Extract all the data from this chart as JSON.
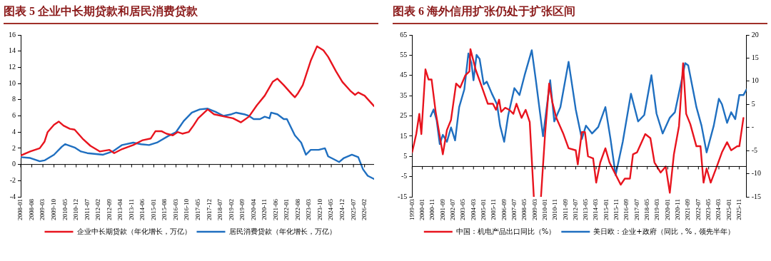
{
  "chart_data": [
    {
      "type": "line",
      "title": "图表 5 企业中长期贷款和居民消费贷款",
      "legend": "bottom",
      "xlim": [
        "2008-01",
        "2026-08"
      ],
      "xticks": [
        "2008-01",
        "2008-08",
        "2009-03",
        "2009-10",
        "2010-05",
        "2010-12",
        "2011-07",
        "2012-02",
        "2012-09",
        "2013-04",
        "2013-11",
        "2014-06",
        "2015-01",
        "2015-08",
        "2016-03",
        "2016-10",
        "2017-05",
        "2017-12",
        "2018-07",
        "2019-02",
        "2019-09",
        "2020-04",
        "2020-11",
        "2021-06",
        "2022-01",
        "2022-08",
        "2023-03",
        "2023-10",
        "2024-05",
        "2024-12",
        "2025-07",
        "2026-02"
      ],
      "ylim": [
        -4,
        16
      ],
      "yticks": [
        -4,
        -2,
        0,
        2,
        4,
        6,
        8,
        10,
        12,
        14,
        16
      ],
      "series": [
        {
          "name": "企业中长期贷款（年化增长，万亿）",
          "color": "#e8141e",
          "x": [
            "2008-01",
            "2008-07",
            "2009-01",
            "2009-04",
            "2009-06",
            "2009-10",
            "2010-01",
            "2010-04",
            "2010-08",
            "2010-11",
            "2011-04",
            "2011-09",
            "2012-03",
            "2012-09",
            "2012-12",
            "2013-05",
            "2013-12",
            "2014-06",
            "2014-11",
            "2015-02",
            "2015-06",
            "2015-09",
            "2016-01",
            "2016-04",
            "2016-07",
            "2016-11",
            "2017-02",
            "2017-05",
            "2017-11",
            "2018-03",
            "2018-10",
            "2019-03",
            "2019-08",
            "2020-01",
            "2020-06",
            "2020-11",
            "2021-04",
            "2021-07",
            "2021-11",
            "2022-04",
            "2022-06",
            "2022-08",
            "2022-11",
            "2023-04",
            "2023-08",
            "2023-12",
            "2024-03",
            "2024-08",
            "2024-12",
            "2025-05",
            "2025-08",
            "2025-10",
            "2026-02",
            "2026-08"
          ],
          "values": [
            1.1,
            1.6,
            2.0,
            2.8,
            4.0,
            4.9,
            5.3,
            4.8,
            4.4,
            4.3,
            3.2,
            2.3,
            1.6,
            1.8,
            1.4,
            1.9,
            2.4,
            3.0,
            3.2,
            4.1,
            4.1,
            3.8,
            3.6,
            4.0,
            3.8,
            4.0,
            4.8,
            5.7,
            6.8,
            6.2,
            5.9,
            5.7,
            5.2,
            5.9,
            7.3,
            8.5,
            10.2,
            10.6,
            9.8,
            8.7,
            8.3,
            8.8,
            9.8,
            12.8,
            14.6,
            14.1,
            13.3,
            11.5,
            10.2,
            9.1,
            8.6,
            8.9,
            8.5,
            7.2
          ]
        },
        {
          "name": "居民消费贷款（年化增长，万亿）",
          "color": "#1f6fc0",
          "x": [
            "2008-01",
            "2008-07",
            "2009-01",
            "2009-04",
            "2009-10",
            "2010-03",
            "2010-05",
            "2010-11",
            "2011-03",
            "2011-07",
            "2012-05",
            "2012-11",
            "2013-05",
            "2013-12",
            "2014-05",
            "2014-10",
            "2015-03",
            "2015-10",
            "2016-03",
            "2016-08",
            "2017-01",
            "2017-06",
            "2017-11",
            "2018-04",
            "2018-09",
            "2019-02",
            "2019-05",
            "2019-10",
            "2020-01",
            "2020-04",
            "2020-08",
            "2020-11",
            "2021-02",
            "2021-03",
            "2021-07",
            "2021-11",
            "2022-01",
            "2022-06",
            "2022-10",
            "2023-01",
            "2023-04",
            "2023-09",
            "2024-01",
            "2024-03",
            "2024-07",
            "2024-10",
            "2025-01",
            "2025-06",
            "2025-10",
            "2026-01",
            "2026-04",
            "2026-08"
          ],
          "values": [
            0.9,
            0.8,
            0.4,
            0.5,
            1.2,
            2.2,
            2.5,
            2.1,
            1.6,
            1.4,
            1.2,
            1.6,
            2.4,
            2.7,
            2.5,
            2.4,
            2.7,
            3.5,
            4.0,
            5.4,
            6.4,
            6.8,
            6.9,
            6.5,
            6.0,
            6.2,
            6.4,
            6.2,
            6.0,
            5.6,
            5.6,
            5.9,
            5.7,
            6.4,
            6.2,
            5.6,
            5.6,
            3.6,
            2.7,
            1.2,
            1.8,
            1.8,
            2.0,
            1.0,
            0.6,
            0.3,
            0.8,
            1.2,
            0.9,
            -0.6,
            -1.4,
            -1.8
          ]
        }
      ]
    },
    {
      "type": "line",
      "title": "图表 6 海外信用扩张仍处于扩张区间",
      "legend": "bottom",
      "xlim": [
        "1999-03",
        "2026-06"
      ],
      "xticks": [
        "1999-03",
        "2000-01",
        "2000-11",
        "2001-09",
        "2002-07",
        "2003-05",
        "2004-03",
        "2005-01",
        "2005-11",
        "2006-09",
        "2007-07",
        "2008-05",
        "2009-03",
        "2010-01",
        "2010-11",
        "2011-09",
        "2012-07",
        "2013-05",
        "2014-03",
        "2015-01",
        "2015-11",
        "2016-09",
        "2017-07",
        "2018-05",
        "2019-03",
        "2020-01",
        "2020-11",
        "2021-09",
        "2022-07",
        "2023-05",
        "2024-03",
        "2025-01",
        "2025-11"
      ],
      "ylim": [
        -15,
        65
      ],
      "yticks": [
        -15,
        -5,
        5,
        15,
        25,
        35,
        45,
        55,
        65
      ],
      "y2lim": [
        -15,
        20
      ],
      "y2ticks": [
        -15,
        -10,
        -5,
        {
          "value": 0,
          "label": "-"
        },
        5,
        10,
        15,
        20
      ],
      "series": [
        {
          "name": "中国：机电产品出口同比（%）",
          "color": "#e8141e",
          "x": [
            "1999-03",
            "1999-07",
            "1999-10",
            "1999-12",
            "2000-04",
            "2000-07",
            "2000-10",
            "2001-02",
            "2001-06",
            "2001-09",
            "2002-01",
            "2002-05",
            "2002-10",
            "2003-02",
            "2003-07",
            "2003-11",
            "2003-12",
            "2004-05",
            "2004-10",
            "2005-05",
            "2005-10",
            "2006-01",
            "2006-04",
            "2006-06",
            "2006-10",
            "2007-02",
            "2007-06",
            "2007-09",
            "2008-02",
            "2008-06",
            "2008-10",
            "2009-02",
            "2009-05",
            "2009-09",
            "2010-01",
            "2010-05",
            "2010-08",
            "2010-12",
            "2011-07",
            "2011-12",
            "2012-07",
            "2012-09",
            "2013-01",
            "2013-04",
            "2013-07",
            "2013-12",
            "2014-03",
            "2014-07",
            "2014-12",
            "2015-04",
            "2015-08",
            "2016-03",
            "2016-07",
            "2016-12",
            "2017-03",
            "2017-07",
            "2018-03",
            "2018-08",
            "2018-12",
            "2019-06",
            "2019-11",
            "2020-03",
            "2020-07",
            "2020-12",
            "2021-04",
            "2021-07",
            "2021-11",
            "2022-05",
            "2022-09",
            "2022-12",
            "2023-03",
            "2023-07",
            "2024-01",
            "2024-06",
            "2024-11",
            "2025-03",
            "2025-09",
            "2025-11",
            "2026-03"
          ],
          "values": [
            7,
            16,
            26,
            16,
            48,
            43,
            43,
            27,
            15,
            6,
            18,
            23,
            41,
            39,
            45,
            47,
            58,
            48,
            41,
            31,
            31,
            28,
            33,
            27,
            29,
            28,
            26,
            31,
            24,
            28,
            22,
            -15,
            null,
            -15,
            16,
            41,
            32,
            24,
            16,
            9,
            8,
            1,
            17,
            17,
            5,
            4,
            -8,
            2,
            9,
            2,
            -2,
            -9,
            -6,
            -6,
            6,
            7,
            16,
            14,
            2,
            -3,
            0,
            -13,
            6,
            20,
            51,
            26,
            21,
            10,
            10,
            -8,
            -1,
            -8,
            0,
            7,
            12,
            8,
            10,
            10,
            24
          ]
        },
        {
          "name": "美日欧：企业+政府（同比，%，领先半年）",
          "color": "#1f6fc0",
          "axis": "y2",
          "x": [
            "2000-09",
            "2000-12",
            "2001-03",
            "2001-06",
            "2001-09",
            "2002-01",
            "2002-05",
            "2002-09",
            "2003-01",
            "2003-06",
            "2003-10",
            "2004-01",
            "2004-03",
            "2004-06",
            "2004-09",
            "2005-01",
            "2005-04",
            "2005-09",
            "2006-02",
            "2006-05",
            "2006-09",
            "2007-01",
            "2007-07",
            "2007-12",
            "2008-05",
            "2008-12",
            "2009-04",
            "2009-11",
            "2010-06",
            "2010-10",
            "2011-04",
            "2011-12",
            "2012-07",
            "2013-01",
            "2013-05",
            "2013-11",
            "2014-05",
            "2014-12",
            "2015-05",
            "2015-10",
            "2016-05",
            "2017-01",
            "2017-08",
            "2018-02",
            "2018-09",
            "2019-02",
            "2019-08",
            "2020-03",
            "2020-08",
            "2021-02",
            "2021-06",
            "2021-09",
            "2022-05",
            "2022-10",
            "2023-03",
            "2023-10",
            "2024-03",
            "2024-06",
            "2024-11",
            "2025-03",
            "2025-07",
            "2025-11",
            "2026-03",
            "2026-06"
          ],
          "values": [
            2.4,
            3.9,
            1.5,
            -3.6,
            -1.6,
            -3.1,
            0,
            -2.8,
            4.4,
            8.2,
            16,
            13.9,
            10.2,
            15.7,
            14.8,
            9.3,
            9.9,
            7.3,
            5,
            0.4,
            -3.1,
            2.7,
            8.5,
            7,
            11.3,
            16.7,
            10.2,
            -1.9,
            10.2,
            1.3,
            4.4,
            14.2,
            3.9,
            -2.5,
            0.4,
            -1.3,
            0.1,
            4.4,
            -2.5,
            -10.3,
            -3.1,
            7.3,
            1.3,
            2.7,
            11.3,
            3,
            -1.3,
            2.1,
            3.3,
            9.6,
            13.9,
            13.4,
            4.4,
            0.4,
            -5.4,
            0.4,
            6.2,
            5,
            1,
            3.3,
            1.8,
            7,
            7,
            8.2
          ]
        }
      ]
    }
  ]
}
